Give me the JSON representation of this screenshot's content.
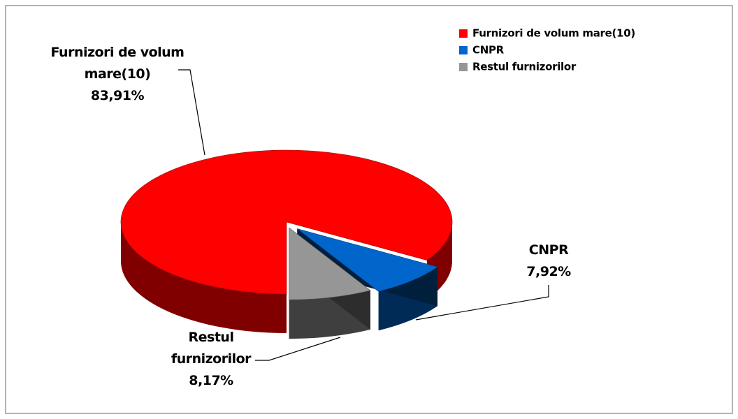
{
  "chart_data": {
    "type": "pie",
    "categories": [
      "Furnizori de volum mare(10)",
      "CNPR",
      "Restul furnizorilor"
    ],
    "values": [
      83.91,
      7.92,
      8.17
    ],
    "value_labels": [
      "83,91%",
      "7,92%",
      "8,17%"
    ],
    "colors": [
      "#ff0000",
      "#0066cc",
      "#969696"
    ],
    "legend": "top-right"
  }
}
